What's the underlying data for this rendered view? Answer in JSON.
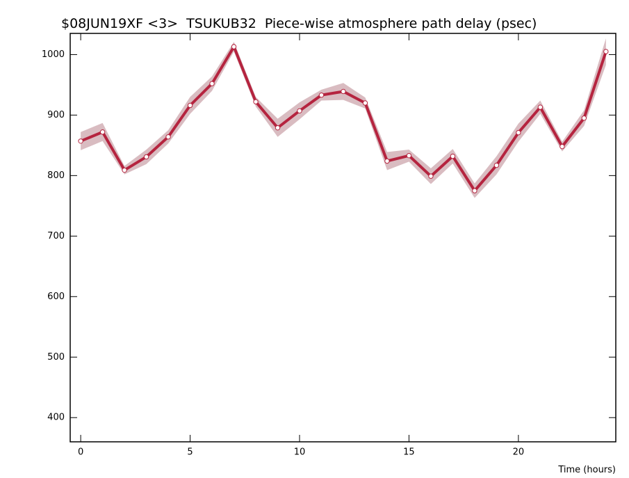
{
  "chart_data": {
    "type": "line",
    "title": "$08JUN19XF <3>  TSUKUB32  Piece-wise atmosphere path delay (psec)",
    "x_label": "Time (hours)",
    "x": [
      0,
      1,
      2,
      3,
      4,
      5,
      6,
      7,
      8,
      9,
      10,
      11,
      12,
      13,
      14,
      15,
      16,
      17,
      18,
      19,
      20,
      21,
      22,
      23,
      24
    ],
    "series": [
      {
        "color": "#b5243f",
        "band_color": "#d9bcc1",
        "values": [
          857,
          872,
          809,
          831,
          864,
          916,
          952,
          1013,
          922,
          879,
          907,
          933,
          939,
          920,
          824,
          833,
          799,
          832,
          775,
          817,
          871,
          913,
          848,
          895,
          1005
        ],
        "errors": [
          15,
          15,
          7,
          12,
          11,
          14,
          12,
          8,
          8,
          15,
          14,
          9,
          14,
          9,
          15,
          10,
          13,
          12,
          12,
          15,
          15,
          11,
          8,
          13,
          22
        ]
      }
    ],
    "xlim": [
      -0.48,
      24.45
    ],
    "ylim": [
      360,
      1035
    ],
    "xticks": [
      0,
      5,
      10,
      15,
      20
    ],
    "yticks": [
      400,
      500,
      600,
      700,
      800,
      900,
      1000
    ]
  }
}
